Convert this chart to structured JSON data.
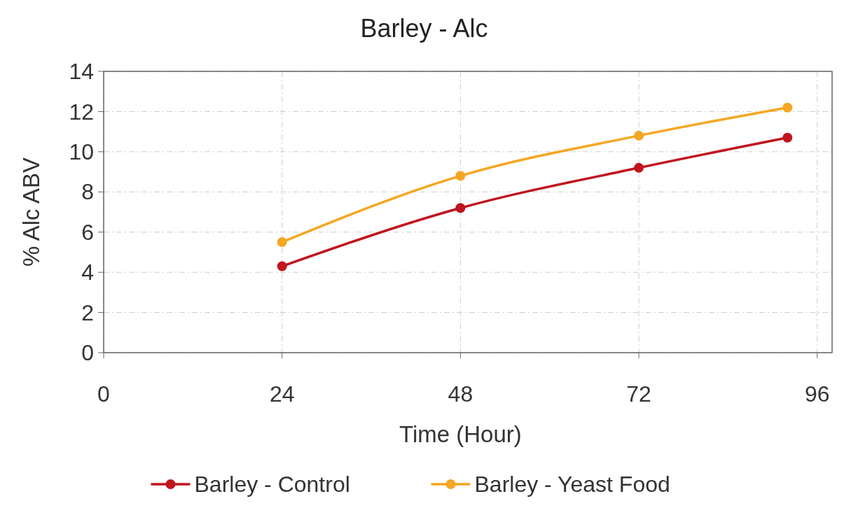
{
  "chart_data": {
    "type": "line",
    "title": "Barley - Alc",
    "xlabel": "Time (Hour)",
    "ylabel": "% Alc ABV",
    "x": [
      24,
      48,
      72,
      92
    ],
    "series": [
      {
        "name": "Barley - Control",
        "color": "#c0141e",
        "values": [
          4.3,
          7.2,
          9.2,
          10.7
        ]
      },
      {
        "name": "Barley - Yeast Food",
        "color": "#f5a623",
        "values": [
          5.5,
          8.8,
          10.8,
          12.2
        ]
      }
    ],
    "xlim": [
      0,
      98
    ],
    "xticks": [
      0,
      24,
      48,
      72,
      96
    ],
    "ylim": [
      0,
      14
    ],
    "yticks": [
      0,
      2,
      4,
      6,
      8,
      10,
      12,
      14
    ],
    "grid": true,
    "legend": "bottom",
    "marker": "circle",
    "line_style": "solid"
  }
}
